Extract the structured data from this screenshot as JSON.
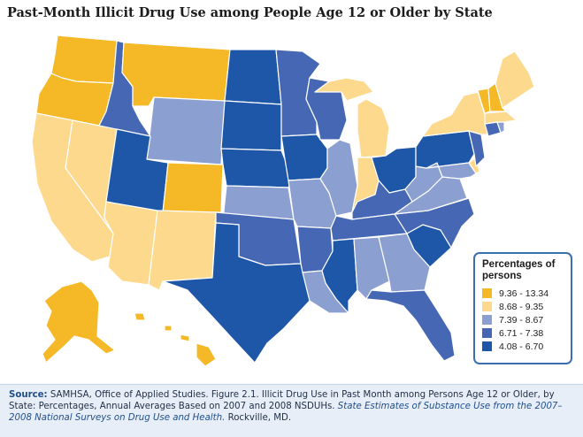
{
  "title": "Past-Month Illicit Drug Use among People Age 12 or Older by State",
  "legend": {
    "title": "Percentages of persons",
    "classes": [
      {
        "range": "9.36 - 13.34",
        "color": "#f5b928"
      },
      {
        "range": "8.68 - 9.35",
        "color": "#fcd98c"
      },
      {
        "range": "7.39 - 8.67",
        "color": "#8c9fd1"
      },
      {
        "range": "6.71 - 7.38",
        "color": "#4668b4"
      },
      {
        "range": "4.08 - 6.70",
        "color": "#1f57a8"
      }
    ]
  },
  "state_classes": {
    "WA": 0,
    "OR": 0,
    "MT": 0,
    "CO": 0,
    "AK": 0,
    "HI": 0,
    "VT": 0,
    "NH": 0,
    "CA": 1,
    "NV": 1,
    "AZ": 1,
    "NM": 1,
    "MI": 1,
    "IN": 1,
    "NY": 1,
    "ME": 1,
    "MA": 1,
    "DE": 1,
    "WY": 2,
    "KS": 2,
    "MO": 2,
    "IL": 2,
    "LA": 2,
    "AL": 2,
    "GA": 2,
    "VA": 2,
    "WV": 2,
    "MD": 2,
    "RI": 2,
    "ID": 3,
    "MN": 3,
    "WI": 3,
    "OK": 3,
    "AR": 3,
    "KY": 3,
    "TN": 3,
    "NC": 3,
    "FL": 3,
    "CT": 3,
    "NJ": 3,
    "UT": 4,
    "ND": 4,
    "SD": 4,
    "NE": 4,
    "IA": 4,
    "TX": 4,
    "MS": 4,
    "SC": 4,
    "OH": 4,
    "PA": 4
  },
  "source": {
    "label": "Source:",
    "text": "SAMHSA, Office of Applied Studies. Figure 2.1. Illicit Drug Use in Past Month among Persons Age 12 or Older, by State: Percentages, Annual Averages Based on 2007 and 2008 NSDUHs.",
    "italic": "State Estimates of Substance Use from the 2007–2008 National Surveys on Drug Use and Health.",
    "tail": "Rockville, MD."
  }
}
